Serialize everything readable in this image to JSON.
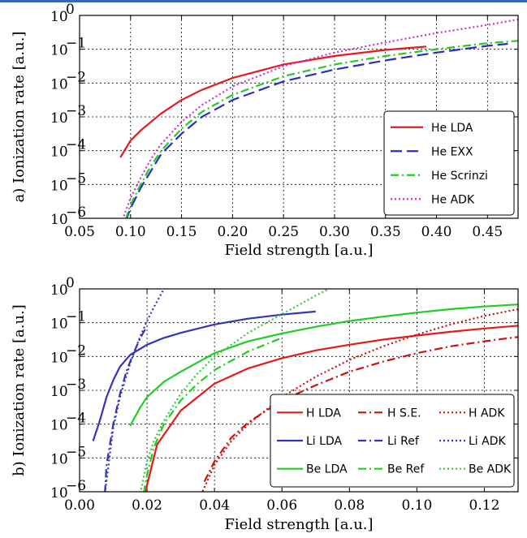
{
  "chart_data": [
    {
      "type": "line",
      "panel": "a",
      "xlabel": "Field strength [a.u.]",
      "ylabel": "a) Ionization rate [a.u.]",
      "xlim": [
        0.05,
        0.48
      ],
      "ylim_log10": [
        -6,
        0
      ],
      "yscale": "log",
      "grid": true,
      "legend_position": "lower-right",
      "xticks": [
        0.05,
        0.1,
        0.15,
        0.2,
        0.25,
        0.3,
        0.35,
        0.4,
        0.45
      ],
      "xtick_labels": [
        "0.05",
        "0.10",
        "0.15",
        "0.20",
        "0.25",
        "0.30",
        "0.35",
        "0.40",
        "0.45"
      ],
      "yticks_exp": [
        0,
        -1,
        -2,
        -3,
        -4,
        -5,
        -6
      ],
      "ytick_labels": [
        "10",
        "10",
        "10",
        "10",
        "10",
        "10",
        "10"
      ],
      "ytick_exponents": [
        "0",
        "−1",
        "−2",
        "−3",
        "−4",
        "−5",
        "−6"
      ],
      "series": [
        {
          "name": "He LDA",
          "color": "#e41a1c",
          "dash": "solid",
          "x": [
            0.09,
            0.1,
            0.11,
            0.13,
            0.15,
            0.17,
            0.2,
            0.25,
            0.3,
            0.35,
            0.39
          ],
          "log10y": [
            -4.2,
            -3.7,
            -3.4,
            -2.9,
            -2.5,
            -2.2,
            -1.85,
            -1.45,
            -1.2,
            -1.02,
            -0.92
          ]
        },
        {
          "name": "He EXX",
          "color": "#2b2bc9",
          "dash": "long",
          "x": [
            0.095,
            0.1,
            0.11,
            0.12,
            0.13,
            0.15,
            0.17,
            0.2,
            0.25,
            0.3,
            0.35,
            0.4,
            0.45,
            0.47
          ],
          "log10y": [
            -6.1,
            -5.7,
            -5.1,
            -4.6,
            -4.1,
            -3.5,
            -3.0,
            -2.5,
            -1.95,
            -1.6,
            -1.33,
            -1.1,
            -0.9,
            -0.84
          ]
        },
        {
          "name": "He Scrinzi",
          "color": "#22cc22",
          "dash": "dashdot",
          "x": [
            0.095,
            0.1,
            0.11,
            0.12,
            0.13,
            0.15,
            0.17,
            0.2,
            0.25,
            0.3,
            0.35,
            0.4,
            0.45,
            0.48
          ],
          "log10y": [
            -6.05,
            -5.6,
            -5.0,
            -4.45,
            -4.0,
            -3.35,
            -2.85,
            -2.35,
            -1.8,
            -1.45,
            -1.2,
            -1.0,
            -0.82,
            -0.75
          ]
        },
        {
          "name": "He ADK",
          "color": "#cc33cc",
          "dash": "dotted",
          "x": [
            0.092,
            0.1,
            0.11,
            0.12,
            0.13,
            0.15,
            0.17,
            0.2,
            0.25,
            0.3,
            0.35,
            0.4,
            0.45,
            0.48
          ],
          "log10y": [
            -6.05,
            -5.4,
            -4.8,
            -4.25,
            -3.8,
            -3.15,
            -2.65,
            -2.1,
            -1.5,
            -1.1,
            -0.8,
            -0.52,
            -0.28,
            -0.12
          ]
        }
      ]
    },
    {
      "type": "line",
      "panel": "b",
      "xlabel": "Field strength [a.u.]",
      "ylabel": "b) Ionization rate [a.u.]",
      "xlim": [
        0.0,
        0.13
      ],
      "ylim_log10": [
        -6,
        0
      ],
      "yscale": "log",
      "grid": true,
      "legend_position": "lower-right",
      "xticks": [
        0.0,
        0.02,
        0.04,
        0.06,
        0.08,
        0.1,
        0.12
      ],
      "xtick_labels": [
        "0.00",
        "0.02",
        "0.04",
        "0.06",
        "0.08",
        "0.10",
        "0.12"
      ],
      "yticks_exp": [
        0,
        -1,
        -2,
        -3,
        -4,
        -5,
        -6
      ],
      "ytick_labels": [
        "10",
        "10",
        "10",
        "10",
        "10",
        "10",
        "10"
      ],
      "ytick_exponents": [
        "0",
        "−1",
        "−2",
        "−3",
        "−4",
        "−5",
        "−6"
      ],
      "series": [
        {
          "name": "H LDA",
          "color": "#e41a1c",
          "dash": "solid",
          "x": [
            0.0195,
            0.02,
            0.023,
            0.03,
            0.04,
            0.05,
            0.06,
            0.07,
            0.08,
            0.09,
            0.1,
            0.11,
            0.12,
            0.13
          ],
          "log10y": [
            -6.1,
            -5.8,
            -4.6,
            -3.6,
            -2.8,
            -2.35,
            -2.05,
            -1.82,
            -1.65,
            -1.5,
            -1.38,
            -1.27,
            -1.17,
            -1.09
          ]
        },
        {
          "name": "H S.E.",
          "color": "#cc1111",
          "dash": "dashdot",
          "x": [
            0.037,
            0.04,
            0.045,
            0.05,
            0.06,
            0.07,
            0.08,
            0.09,
            0.1,
            0.11,
            0.12,
            0.13
          ],
          "log10y": [
            -5.7,
            -5.1,
            -4.4,
            -3.95,
            -3.3,
            -2.85,
            -2.45,
            -2.15,
            -1.9,
            -1.7,
            -1.55,
            -1.42
          ]
        },
        {
          "name": "H ADK",
          "color": "#cc1111",
          "dash": "dotted",
          "x": [
            0.036,
            0.04,
            0.045,
            0.05,
            0.06,
            0.07,
            0.08,
            0.09,
            0.1,
            0.11,
            0.12,
            0.13
          ],
          "log10y": [
            -6.1,
            -5.2,
            -4.5,
            -4.0,
            -3.2,
            -2.6,
            -2.1,
            -1.7,
            -1.35,
            -1.05,
            -0.8,
            -0.6
          ]
        },
        {
          "name": "Li LDA",
          "color": "#3333bb",
          "dash": "solid",
          "x": [
            0.004,
            0.006,
            0.008,
            0.01,
            0.012,
            0.015,
            0.02,
            0.025,
            0.03,
            0.04,
            0.05,
            0.06,
            0.07
          ],
          "log10y": [
            -4.5,
            -3.9,
            -3.2,
            -2.7,
            -2.3,
            -1.95,
            -1.65,
            -1.45,
            -1.3,
            -1.05,
            -0.88,
            -0.76,
            -0.67
          ]
        },
        {
          "name": "Li Ref",
          "color": "#3333bb",
          "dash": "dashdot",
          "x": [
            0.0075,
            0.008,
            0.01,
            0.012,
            0.014,
            0.016,
            0.018,
            0.02
          ],
          "log10y": [
            -6.05,
            -5.2,
            -4.0,
            -3.1,
            -2.4,
            -1.9,
            -1.45,
            -1.1
          ]
        },
        {
          "name": "Li ADK",
          "color": "#3333bb",
          "dash": "dotted",
          "x": [
            0.0075,
            0.01,
            0.012,
            0.015,
            0.018,
            0.02,
            0.022,
            0.025
          ],
          "log10y": [
            -6.05,
            -4.1,
            -3.2,
            -2.2,
            -1.4,
            -0.95,
            -0.55,
            0.0
          ]
        },
        {
          "name": "Be LDA",
          "color": "#22cc22",
          "dash": "solid",
          "x": [
            0.015,
            0.018,
            0.02,
            0.025,
            0.03,
            0.04,
            0.05,
            0.06,
            0.07,
            0.08,
            0.09,
            0.1,
            0.11,
            0.12,
            0.13
          ],
          "log10y": [
            -4.05,
            -3.5,
            -3.2,
            -2.75,
            -2.45,
            -1.9,
            -1.55,
            -1.32,
            -1.12,
            -0.95,
            -0.82,
            -0.7,
            -0.6,
            -0.52,
            -0.46
          ]
        },
        {
          "name": "Be Ref",
          "color": "#22cc22",
          "dash": "dashdot",
          "x": [
            0.019,
            0.02,
            0.022,
            0.025,
            0.03,
            0.035,
            0.04,
            0.05,
            0.06
          ],
          "log10y": [
            -6.05,
            -5.5,
            -4.7,
            -4.0,
            -3.3,
            -2.8,
            -2.4,
            -1.85,
            -1.45
          ]
        },
        {
          "name": "Be ADK",
          "color": "#33cc33",
          "dash": "dotted",
          "x": [
            0.018,
            0.02,
            0.022,
            0.025,
            0.03,
            0.035,
            0.04,
            0.05,
            0.06,
            0.07,
            0.074
          ],
          "log10y": [
            -6.05,
            -5.1,
            -4.5,
            -3.9,
            -3.1,
            -2.5,
            -2.0,
            -1.3,
            -0.75,
            -0.2,
            0.0
          ]
        }
      ]
    }
  ]
}
